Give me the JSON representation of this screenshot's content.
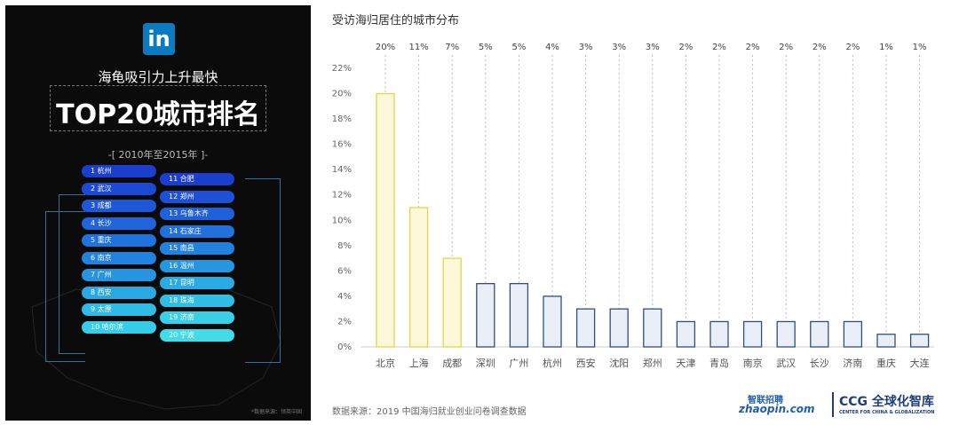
{
  "left": {
    "logo_text": "in",
    "title": "海龟吸引力上升最快",
    "subtitle": "TOP20城市排名",
    "period": "-[ 2010年至2015年 ]-",
    "footnote": "*数据来源：领英中国",
    "rankings": [
      {
        "rank": "1",
        "city": "杭州"
      },
      {
        "rank": "2",
        "city": "武汉"
      },
      {
        "rank": "3",
        "city": "成都"
      },
      {
        "rank": "4",
        "city": "长沙"
      },
      {
        "rank": "5",
        "city": "重庆"
      },
      {
        "rank": "6",
        "city": "南京"
      },
      {
        "rank": "7",
        "city": "广州"
      },
      {
        "rank": "8",
        "city": "西安"
      },
      {
        "rank": "9",
        "city": "太原"
      },
      {
        "rank": "10",
        "city": "哈尔滨"
      },
      {
        "rank": "11",
        "city": "合肥"
      },
      {
        "rank": "12",
        "city": "郑州"
      },
      {
        "rank": "13",
        "city": "乌鲁木齐"
      },
      {
        "rank": "14",
        "city": "石家庄"
      },
      {
        "rank": "15",
        "city": "南昌"
      },
      {
        "rank": "16",
        "city": "温州"
      },
      {
        "rank": "17",
        "city": "昆明"
      },
      {
        "rank": "18",
        "city": "珠海"
      },
      {
        "rank": "19",
        "city": "济南"
      },
      {
        "rank": "20",
        "city": "宁波"
      }
    ]
  },
  "right": {
    "source": "数据来源：2019 中国海归就业创业问卷调查数据",
    "zhaopin_top": "智联招聘",
    "zhaopin_bottom": "zhaopin.com",
    "ccg_main": "CCG 全球化智库",
    "ccg_sub": "CENTER FOR CHINA & GLOBALIZATION"
  },
  "chart_data": {
    "type": "bar",
    "title": "受访海归居住的城市分布",
    "categories": [
      "北京",
      "上海",
      "成都",
      "深圳",
      "广州",
      "杭州",
      "西安",
      "沈阳",
      "郑州",
      "天津",
      "青岛",
      "南京",
      "武汉",
      "长沙",
      "济南",
      "重庆",
      "大连"
    ],
    "values": [
      20,
      11,
      7,
      5,
      5,
      4,
      3,
      3,
      3,
      2,
      2,
      2,
      2,
      2,
      2,
      1,
      1
    ],
    "data_labels": [
      "20%",
      "11%",
      "7%",
      "5%",
      "5%",
      "4%",
      "3%",
      "3%",
      "3%",
      "2%",
      "2%",
      "2%",
      "2%",
      "2%",
      "2%",
      "1%",
      "1%"
    ],
    "ylim": [
      0,
      22
    ],
    "yticks": [
      "0%",
      "2%",
      "4%",
      "6%",
      "8%",
      "10%",
      "12%",
      "14%",
      "16%",
      "18%",
      "20%",
      "22%"
    ],
    "highlight_count": 3,
    "colors": {
      "highlight_fill": "#fdf8da",
      "highlight_stroke": "#e8d24a",
      "normal_fill": "#e9eef7",
      "normal_stroke": "#2f4f80"
    }
  }
}
